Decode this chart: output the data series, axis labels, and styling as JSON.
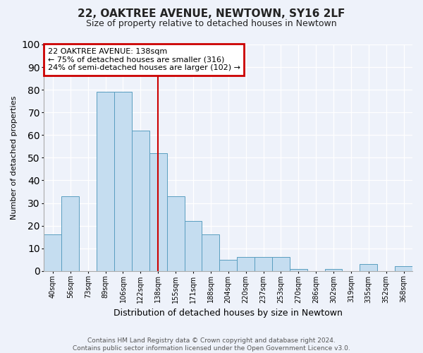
{
  "title1": "22, OAKTREE AVENUE, NEWTOWN, SY16 2LF",
  "title2": "Size of property relative to detached houses in Newtown",
  "xlabel": "Distribution of detached houses by size in Newtown",
  "ylabel": "Number of detached properties",
  "categories": [
    "40sqm",
    "56sqm",
    "73sqm",
    "89sqm",
    "106sqm",
    "122sqm",
    "138sqm",
    "155sqm",
    "171sqm",
    "188sqm",
    "204sqm",
    "220sqm",
    "237sqm",
    "253sqm",
    "270sqm",
    "286sqm",
    "302sqm",
    "319sqm",
    "335sqm",
    "352sqm",
    "368sqm"
  ],
  "values": [
    16,
    33,
    0,
    79,
    79,
    62,
    52,
    33,
    22,
    16,
    5,
    6,
    6,
    6,
    1,
    0,
    1,
    0,
    3,
    0,
    2
  ],
  "bar_color": "#c5ddf0",
  "bar_edge_color": "#5a9ec0",
  "highlight_bar_index": 6,
  "highlight_color": "#cc0000",
  "annotation_line1": "22 OAKTREE AVENUE: 138sqm",
  "annotation_line2": "← 75% of detached houses are smaller (316)",
  "annotation_line3": "24% of semi-detached houses are larger (102) →",
  "annotation_box_color": "#ffffff",
  "annotation_box_edge": "#cc0000",
  "ylim": [
    0,
    100
  ],
  "yticks": [
    0,
    10,
    20,
    30,
    40,
    50,
    60,
    70,
    80,
    90,
    100
  ],
  "footer1": "Contains HM Land Registry data © Crown copyright and database right 2024.",
  "footer2": "Contains public sector information licensed under the Open Government Licence v3.0.",
  "background_color": "#eef2fa",
  "grid_color": "#ffffff",
  "title1_fontsize": 11,
  "title2_fontsize": 9,
  "ylabel_fontsize": 8,
  "xlabel_fontsize": 9,
  "tick_fontsize": 7,
  "footer_fontsize": 6.5
}
